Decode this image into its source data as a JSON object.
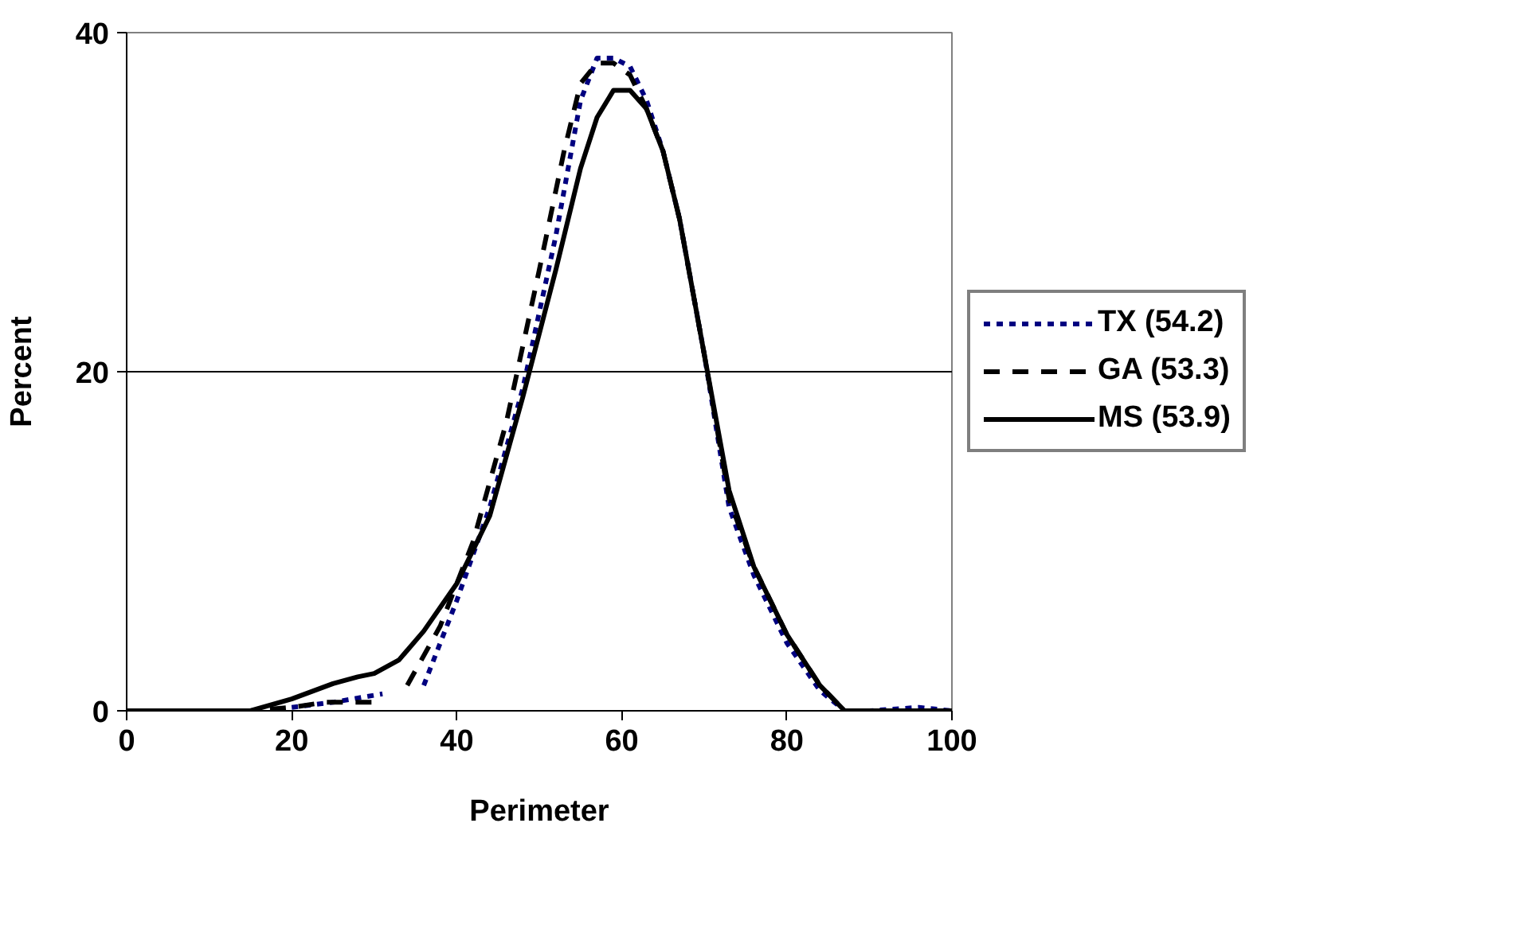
{
  "chart_data": {
    "type": "line",
    "xlabel": "Perimeter",
    "ylabel": "Percent",
    "xlim": [
      0,
      100
    ],
    "ylim": [
      0,
      40
    ],
    "xticks": [
      0,
      20,
      40,
      60,
      80,
      100
    ],
    "yticks": [
      0,
      20,
      40
    ],
    "grid": "y",
    "legend": "right",
    "marker": "none",
    "series": [
      {
        "name": "TX (54.2)",
        "color": "#000080",
        "line_style": "dotted",
        "x": [
          20,
          25,
          31,
          32,
          36,
          40,
          44,
          48,
          52,
          55,
          57,
          59,
          61,
          63,
          65,
          67,
          70,
          73,
          76,
          80,
          84,
          87,
          90,
          96,
          100
        ],
        "values": [
          0.2,
          0.5,
          1.0,
          null,
          1.5,
          6.5,
          12,
          19,
          28,
          36,
          38.5,
          38.5,
          38,
          36,
          33,
          29,
          21,
          12,
          8,
          4,
          1.2,
          0,
          0,
          0.2,
          0
        ]
      },
      {
        "name": "GA (53.3)",
        "color": "#000000",
        "line_style": "dashed",
        "x": [
          0,
          10,
          15,
          20,
          24,
          31,
          32,
          34,
          38,
          42,
          46,
          50,
          53,
          55,
          57,
          59,
          61,
          63,
          65,
          67,
          70,
          73,
          76,
          80,
          84,
          87,
          90,
          100
        ],
        "values": [
          0,
          0,
          0,
          0.2,
          0.5,
          0.5,
          null,
          1.5,
          5,
          10,
          17,
          26,
          33,
          37,
          38.2,
          38.2,
          37.5,
          35.5,
          33,
          29,
          21,
          12.5,
          8.5,
          4.5,
          1.5,
          0,
          0,
          0
        ]
      },
      {
        "name": "MS (53.9)",
        "color": "#000000",
        "line_style": "solid",
        "x": [
          0,
          10,
          15,
          20,
          25,
          28,
          30,
          33,
          36,
          40,
          44,
          48,
          52,
          55,
          57,
          59,
          61,
          63,
          65,
          67,
          70,
          73,
          76,
          80,
          84,
          87,
          90,
          100
        ],
        "values": [
          0,
          0,
          0,
          0.7,
          1.6,
          2.0,
          2.2,
          3.0,
          4.7,
          7.5,
          11.5,
          18.5,
          26,
          32,
          35,
          36.6,
          36.6,
          35.5,
          33,
          29,
          21,
          13,
          8.5,
          4.5,
          1.5,
          0,
          0,
          0
        ]
      }
    ]
  }
}
